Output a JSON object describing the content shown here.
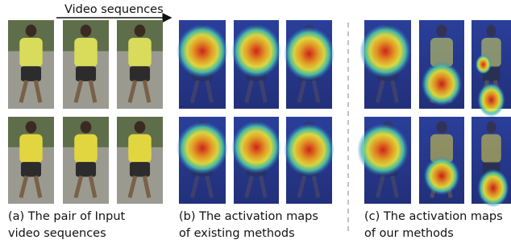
{
  "header": {
    "arrow_label": "Video sequences"
  },
  "captions": [
    {
      "lines": [
        "(a) The pair of Input",
        "video sequences"
      ]
    },
    {
      "lines": [
        "(b) The activation maps",
        "of existing methods"
      ]
    },
    {
      "lines": [
        "(c) The activation maps",
        "of our methods"
      ]
    }
  ]
}
